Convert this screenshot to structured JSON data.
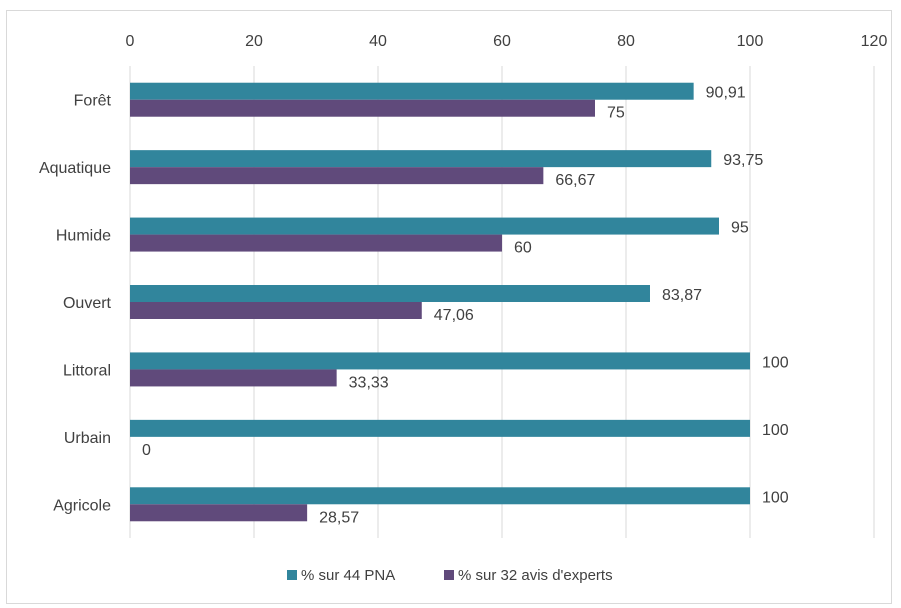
{
  "chart_data": {
    "type": "bar",
    "orientation": "horizontal",
    "categories": [
      "Forêt",
      "Aquatique",
      "Humide",
      "Ouvert",
      "Littoral",
      "Urbain",
      "Agricole"
    ],
    "series": [
      {
        "name": "% sur 44 PNA",
        "color": "#31859c",
        "values": [
          90.91,
          93.75,
          95,
          83.87,
          100,
          100,
          100
        ],
        "labels": [
          "90,91",
          "93,75",
          "95",
          "83,87",
          "100",
          "100",
          "100"
        ]
      },
      {
        "name": "% sur 32 avis d'experts",
        "color": "#604a7b",
        "values": [
          75,
          66.67,
          60,
          47.06,
          33.33,
          0,
          28.57
        ],
        "labels": [
          "75",
          "66,67",
          "60",
          "47,06",
          "33,33",
          "0",
          "28,57"
        ]
      }
    ],
    "xlim": [
      0,
      120
    ],
    "xticks": [
      "0",
      "20",
      "40",
      "60",
      "80",
      "100",
      "120"
    ],
    "xtick_values": [
      0,
      20,
      40,
      60,
      80,
      100,
      120
    ],
    "axis_position": "top",
    "grid": true,
    "legend_position": "bottom"
  }
}
